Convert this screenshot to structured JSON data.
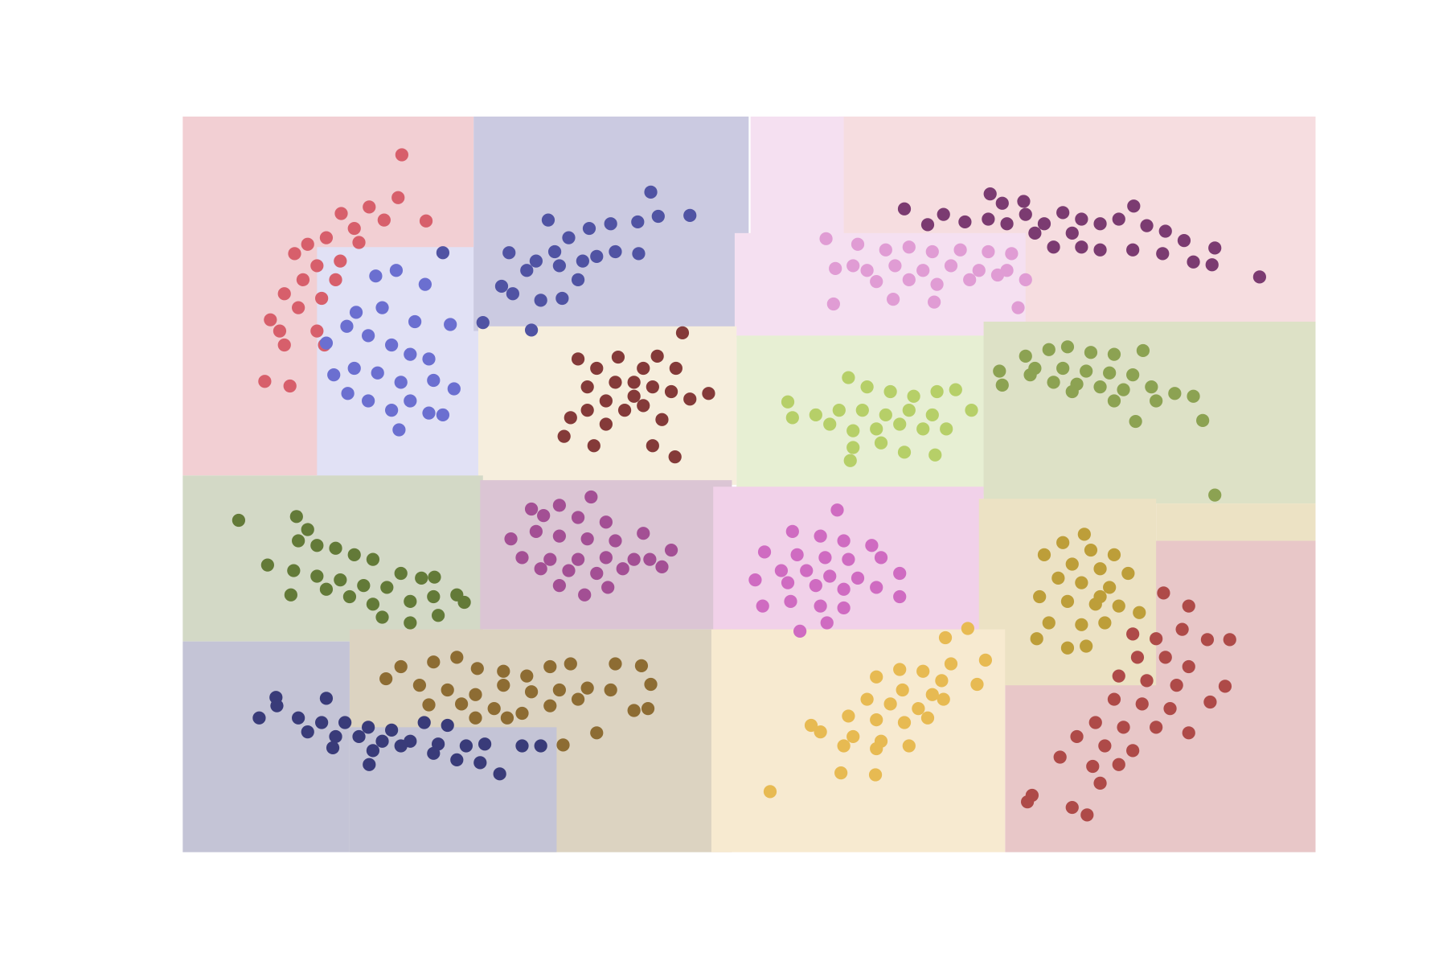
{
  "chart_data": {
    "type": "scatter",
    "xlim": [
      0,
      1215
    ],
    "ylim": [
      0,
      789
    ],
    "series": [
      {
        "color": "#d75f6b",
        "x": [
          235,
          231,
          261,
          200,
          170,
          184,
          154,
          134,
          120,
          144,
          164,
          129,
          109,
          124,
          149,
          169,
          94,
          104,
          144,
          109,
          152,
          88,
          115,
          189,
          216
        ],
        "y": [
          748,
          702,
          677,
          692,
          685,
          669,
          659,
          652,
          642,
          629,
          614,
          614,
          599,
          584,
          594,
          634,
          571,
          559,
          559,
          544,
          544,
          505,
          500,
          654,
          678
        ]
      },
      {
        "color": "#5053a3",
        "x": [
          502,
          544,
          510,
          488,
          459,
          436,
          414,
          392,
          399,
          379,
          350,
          369,
          342,
          354,
          384,
          407,
          424,
          444,
          464,
          489,
          374,
          322,
          279,
          404,
          429
        ],
        "y": [
          708,
          683,
          682,
          676,
          674,
          669,
          659,
          678,
          644,
          634,
          643,
          624,
          607,
          599,
          592,
          594,
          614,
          639,
          644,
          642,
          560,
          568,
          643,
          629,
          634
        ]
      },
      {
        "color": "#6b6fd0",
        "x": [
          207,
          229,
          260,
          287,
          186,
          214,
          249,
          176,
          199,
          224,
          244,
          264,
          162,
          184,
          209,
          234,
          269,
          291,
          177,
          199,
          224,
          244,
          264,
          279,
          232,
          154
        ],
        "y": [
          618,
          624,
          609,
          566,
          579,
          584,
          569,
          564,
          554,
          544,
          534,
          529,
          512,
          519,
          514,
          504,
          506,
          497,
          492,
          484,
          474,
          484,
          471,
          469,
          453,
          546
        ]
      },
      {
        "color": "#e09cd4",
        "x": [
          690,
          724,
          754,
          779,
          804,
          834,
          864,
          889,
          700,
          734,
          764,
          794,
          824,
          854,
          884,
          904,
          744,
          779,
          809,
          844,
          874,
          698,
          762,
          806,
          896,
          719
        ],
        "y": [
          658,
          652,
          646,
          649,
          644,
          646,
          644,
          642,
          626,
          624,
          629,
          624,
          629,
          624,
          624,
          614,
          612,
          614,
          609,
          614,
          619,
          588,
          593,
          590,
          584,
          629
        ]
      },
      {
        "color": "#7b3b71",
        "x": [
          774,
          799,
          816,
          839,
          866,
          879,
          902,
          864,
          884,
          904,
          924,
          944,
          964,
          984,
          1004,
          1020,
          1034,
          1054,
          1074,
          1107,
          1084,
          1104,
          1155,
          934,
          964,
          1019,
          1051,
          984,
          914,
          954
        ],
        "y": [
          690,
          673,
          684,
          676,
          706,
          696,
          698,
          679,
          674,
          684,
          674,
          686,
          679,
          674,
          679,
          693,
          672,
          666,
          656,
          648,
          633,
          630,
          617,
          649,
          649,
          646,
          642,
          646,
          664,
          664
        ]
      },
      {
        "color": "#843a39",
        "x": [
          536,
          424,
          444,
          467,
          494,
          509,
          529,
          464,
          484,
          504,
          524,
          564,
          544,
          434,
          454,
          474,
          494,
          514,
          434,
          409,
          441,
          504,
          528,
          416,
          484,
          454
        ],
        "y": [
          557,
          529,
          519,
          531,
          519,
          532,
          519,
          504,
          504,
          499,
          494,
          492,
          486,
          499,
          484,
          474,
          479,
          464,
          474,
          446,
          436,
          436,
          424,
          466,
          489,
          459
        ]
      },
      {
        "color": "#b6cf68",
        "x": [
          714,
          734,
          759,
          784,
          809,
          829,
          649,
          679,
          704,
          729,
          754,
          779,
          804,
          846,
          654,
          694,
          719,
          744,
          769,
          794,
          819,
          719,
          749,
          774,
          807,
          716
        ],
        "y": [
          509,
          499,
          494,
          489,
          494,
          496,
          483,
          469,
          474,
          474,
          469,
          474,
          469,
          474,
          466,
          459,
          452,
          454,
          459,
          454,
          454,
          434,
          439,
          429,
          426,
          420
        ]
      },
      {
        "color": "#8ca252",
        "x": [
          904,
          929,
          949,
          974,
          999,
          1030,
          914,
          944,
          969,
          994,
          1019,
          876,
          879,
          909,
          934,
          959,
          984,
          1009,
          1039,
          1064,
          1084,
          1094,
          1022,
          999,
          954,
          1044,
          1107
        ],
        "y": [
          532,
          539,
          542,
          536,
          534,
          538,
          519,
          519,
          516,
          514,
          512,
          516,
          501,
          512,
          504,
          502,
          499,
          496,
          499,
          492,
          489,
          463,
          462,
          484,
          494,
          484,
          383
        ]
      },
      {
        "color": "#637a38",
        "x": [
          60,
          122,
          134,
          124,
          144,
          164,
          184,
          204,
          234,
          91,
          119,
          144,
          169,
          194,
          219,
          256,
          270,
          116,
          154,
          179,
          204,
          244,
          269,
          294,
          302,
          214,
          244,
          274
        ],
        "y": [
          356,
          360,
          346,
          334,
          329,
          326,
          319,
          314,
          299,
          308,
          302,
          296,
          292,
          286,
          284,
          294,
          295,
          276,
          282,
          274,
          266,
          269,
          274,
          276,
          268,
          252,
          246,
          254
        ]
      },
      {
        "color": "#a34f94",
        "x": [
          438,
          374,
          404,
          387,
          424,
          454,
          352,
          379,
          404,
          434,
          464,
          494,
          524,
          364,
          394,
          424,
          454,
          484,
          514,
          384,
          414,
          444,
          472,
          501,
          404,
          431,
          456
        ],
        "y": [
          381,
          368,
          372,
          361,
          359,
          354,
          336,
          344,
          339,
          336,
          334,
          342,
          324,
          316,
          314,
          314,
          316,
          314,
          306,
          304,
          302,
          299,
          304,
          314,
          286,
          276,
          284
        ]
      },
      {
        "color": "#cf6bc1",
        "x": [
          702,
          654,
          684,
          709,
          739,
          624,
          659,
          689,
          714,
          749,
          642,
          669,
          694,
          724,
          769,
          614,
          649,
          679,
          709,
          744,
          769,
          622,
          652,
          684,
          709,
          662,
          691
        ],
        "y": [
          367,
          344,
          339,
          334,
          329,
          322,
          319,
          316,
          314,
          316,
          302,
          302,
          296,
          294,
          299,
          292,
          289,
          286,
          282,
          284,
          274,
          264,
          269,
          264,
          262,
          237,
          246
        ]
      },
      {
        "color": "#bd9e39",
        "x": [
          967,
          944,
          974,
          999,
          924,
          954,
          984,
          1014,
          939,
          964,
          994,
          919,
          949,
          979,
          1004,
          1026,
          929,
          964,
          989,
          916,
          949,
          969,
          984
        ],
        "y": [
          341,
          332,
          324,
          319,
          319,
          309,
          304,
          299,
          294,
          289,
          284,
          274,
          269,
          266,
          264,
          257,
          246,
          244,
          246,
          229,
          219,
          221,
          274
        ]
      },
      {
        "color": "#ae4a48",
        "x": [
          1052,
          1079,
          1019,
          1044,
          1072,
          1099,
          1123,
          1024,
          1054,
          1079,
          1004,
          1034,
          1066,
          1118,
          999,
          1029,
          1059,
          1102,
          979,
          1009,
          1044,
          1079,
          959,
          989,
          1019,
          941,
          976,
          1004,
          984,
          911,
          906,
          954,
          970
        ],
        "y": [
          278,
          264,
          234,
          229,
          239,
          228,
          228,
          209,
          209,
          199,
          189,
          184,
          179,
          178,
          164,
          159,
          154,
          161,
          139,
          134,
          134,
          128,
          124,
          114,
          109,
          102,
          92,
          94,
          74,
          61,
          54,
          48,
          40
        ]
      },
      {
        "color": "#8d6c33",
        "x": [
          234,
          269,
          294,
          316,
          344,
          369,
          394,
          416,
          464,
          492,
          218,
          254,
          284,
          314,
          344,
          374,
          404,
          434,
          459,
          502,
          264,
          299,
          334,
          364,
          394,
          424,
          499,
          484,
          408,
          444,
          348,
          314
        ],
        "y": [
          199,
          204,
          209,
          197,
          194,
          189,
          199,
          202,
          202,
          200,
          186,
          179,
          174,
          169,
          179,
          172,
          174,
          176,
          174,
          180,
          158,
          159,
          154,
          149,
          157,
          164,
          154,
          152,
          115,
          128,
          144,
          144
        ]
      },
      {
        "color": "#393b79",
        "x": [
          100,
          154,
          101,
          82,
          124,
          149,
          174,
          199,
          224,
          259,
          284,
          134,
          164,
          189,
          214,
          244,
          274,
          304,
          324,
          364,
          384,
          161,
          204,
          234,
          294,
          319,
          200,
          340,
          269
        ],
        "y": [
          166,
          165,
          157,
          144,
          144,
          139,
          139,
          134,
          131,
          139,
          136,
          129,
          124,
          124,
          119,
          119,
          116,
          114,
          116,
          114,
          114,
          112,
          109,
          114,
          99,
          96,
          94,
          84,
          106
        ]
      },
      {
        "color": "#e7ba52",
        "x": [
          842,
          818,
          824,
          861,
          769,
          794,
          814,
          744,
          772,
          804,
          852,
          734,
          759,
          789,
          816,
          714,
          744,
          774,
          799,
          674,
          684,
          719,
          749,
          779,
          709,
          744,
          706,
          743,
          630
        ],
        "y": [
          240,
          230,
          202,
          206,
          196,
          194,
          184,
          188,
          174,
          169,
          180,
          164,
          159,
          154,
          164,
          146,
          142,
          139,
          144,
          136,
          129,
          124,
          119,
          114,
          114,
          111,
          85,
          83,
          65
        ]
      }
    ]
  }
}
